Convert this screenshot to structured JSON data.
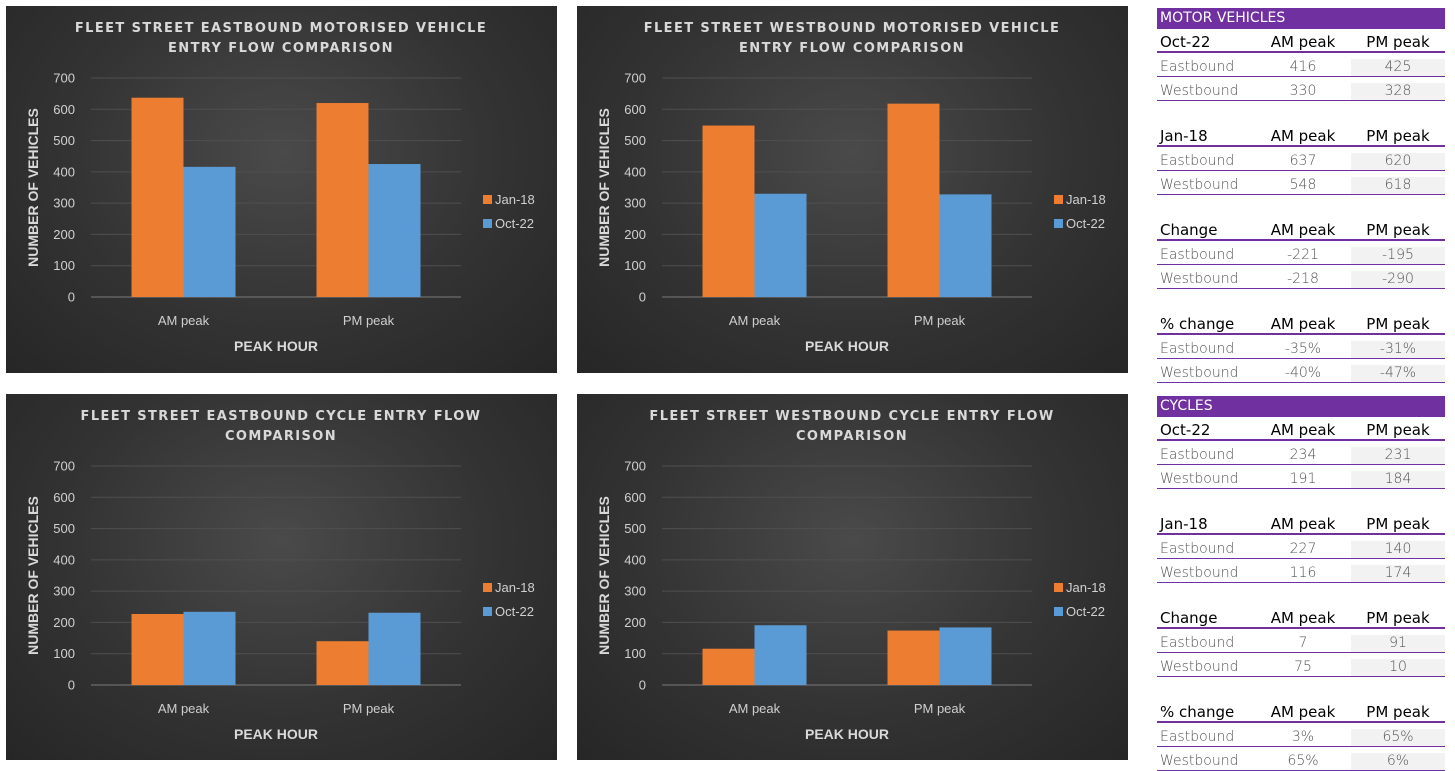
{
  "colors": {
    "jan18": "#ed7d31",
    "oct22": "#5b9bd5",
    "table_accent": "#7030a0",
    "chart_bg": "#333333"
  },
  "chart_data": [
    {
      "type": "bar",
      "title_lines": [
        "FLEET STREET EASTBOUND MOTORISED VEHICLE",
        "ENTRY FLOW COMPARISON"
      ],
      "categories": [
        "AM peak",
        "PM peak"
      ],
      "series": [
        {
          "name": "Jan-18",
          "values": [
            637,
            620
          ]
        },
        {
          "name": "Oct-22",
          "values": [
            416,
            425
          ]
        }
      ],
      "xlabel": "PEAK HOUR",
      "ylabel": "NUMBER OF VEHICLES",
      "ylim": [
        0,
        700
      ],
      "yticks": [
        0,
        100,
        200,
        300,
        400,
        500,
        600,
        700
      ],
      "grid": true,
      "legend": "right"
    },
    {
      "type": "bar",
      "title_lines": [
        "FLEET STREET WESTBOUND MOTORISED VEHICLE",
        "ENTRY FLOW COMPARISON"
      ],
      "categories": [
        "AM peak",
        "PM peak"
      ],
      "series": [
        {
          "name": "Jan-18",
          "values": [
            548,
            618
          ]
        },
        {
          "name": "Oct-22",
          "values": [
            330,
            328
          ]
        }
      ],
      "xlabel": "PEAK HOUR",
      "ylabel": "NUMBER OF VEHICLES",
      "ylim": [
        0,
        700
      ],
      "yticks": [
        0,
        100,
        200,
        300,
        400,
        500,
        600,
        700
      ],
      "grid": true,
      "legend": "right"
    },
    {
      "type": "bar",
      "title_lines": [
        "FLEET STREET EASTBOUND CYCLE ENTRY FLOW",
        "COMPARISON"
      ],
      "categories": [
        "AM peak",
        "PM peak"
      ],
      "series": [
        {
          "name": "Jan-18",
          "values": [
            227,
            140
          ]
        },
        {
          "name": "Oct-22",
          "values": [
            234,
            231
          ]
        }
      ],
      "xlabel": "PEAK HOUR",
      "ylabel": "NUMBER OF VEHICLES",
      "ylim": [
        0,
        700
      ],
      "yticks": [
        0,
        100,
        200,
        300,
        400,
        500,
        600,
        700
      ],
      "grid": true,
      "legend": "right"
    },
    {
      "type": "bar",
      "title_lines": [
        "FLEET STREET WESTBOUND CYCLE ENTRY FLOW",
        "COMPARISON"
      ],
      "categories": [
        "AM peak",
        "PM peak"
      ],
      "series": [
        {
          "name": "Jan-18",
          "values": [
            116,
            174
          ]
        },
        {
          "name": "Oct-22",
          "values": [
            191,
            184
          ]
        }
      ],
      "xlabel": "PEAK HOUR",
      "ylabel": "NUMBER OF VEHICLES",
      "ylim": [
        0,
        700
      ],
      "yticks": [
        0,
        100,
        200,
        300,
        400,
        500,
        600,
        700
      ],
      "grid": true,
      "legend": "right"
    }
  ],
  "tables": [
    {
      "title": "MOTOR VEHICLES",
      "groups": [
        {
          "head": [
            "Oct-22",
            "AM peak",
            "PM peak"
          ],
          "rows": [
            [
              "Eastbound",
              "416",
              "425"
            ],
            [
              "Westbound",
              "330",
              "328"
            ]
          ]
        },
        {
          "head": [
            "Jan-18",
            "AM peak",
            "PM peak"
          ],
          "rows": [
            [
              "Eastbound",
              "637",
              "620"
            ],
            [
              "Westbound",
              "548",
              "618"
            ]
          ]
        },
        {
          "head": [
            "Change",
            "AM peak",
            "PM peak"
          ],
          "rows": [
            [
              "Eastbound",
              "-221",
              "-195"
            ],
            [
              "Westbound",
              "-218",
              "-290"
            ]
          ]
        },
        {
          "head": [
            "% change",
            "AM peak",
            "PM peak"
          ],
          "rows": [
            [
              "Eastbound",
              "-35%",
              "-31%"
            ],
            [
              "Westbound",
              "-40%",
              "-47%"
            ]
          ]
        }
      ]
    },
    {
      "title": "CYCLES",
      "groups": [
        {
          "head": [
            "Oct-22",
            "AM peak",
            "PM peak"
          ],
          "rows": [
            [
              "Eastbound",
              "234",
              "231"
            ],
            [
              "Westbound",
              "191",
              "184"
            ]
          ]
        },
        {
          "head": [
            "Jan-18",
            "AM peak",
            "PM peak"
          ],
          "rows": [
            [
              "Eastbound",
              "227",
              "140"
            ],
            [
              "Westbound",
              "116",
              "174"
            ]
          ]
        },
        {
          "head": [
            "Change",
            "AM peak",
            "PM peak"
          ],
          "rows": [
            [
              "Eastbound",
              "7",
              "91"
            ],
            [
              "Westbound",
              "75",
              "10"
            ]
          ]
        },
        {
          "head": [
            "% change",
            "AM peak",
            "PM peak"
          ],
          "rows": [
            [
              "Eastbound",
              "3%",
              "65%"
            ],
            [
              "Westbound",
              "65%",
              "6%"
            ]
          ]
        }
      ]
    }
  ]
}
